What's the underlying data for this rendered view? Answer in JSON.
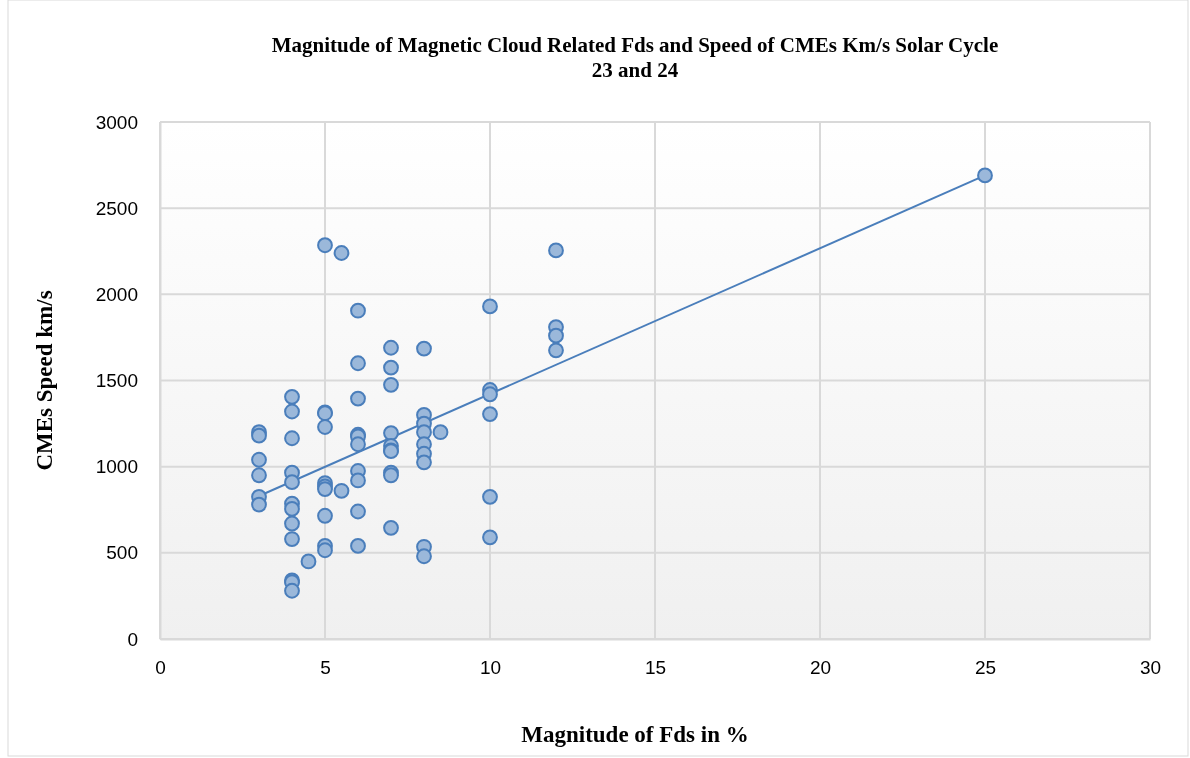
{
  "chart_data": {
    "type": "scatter",
    "title": "Magnitude of Magnetic Cloud Related Fds and Speed of CMEs Km/s Solar Cycle 23 and 24",
    "xlabel": "Magnitude of Fds in %",
    "ylabel": "CMEs Speed km/s",
    "xlim": [
      0,
      30
    ],
    "ylim": [
      0,
      3000
    ],
    "xticks": [
      0,
      5,
      10,
      15,
      20,
      25,
      30
    ],
    "yticks": [
      0,
      500,
      1000,
      1500,
      2000,
      2500,
      3000
    ],
    "grid": true,
    "series": [
      {
        "marker": "circle",
        "color": "#4a7ebb",
        "x": [
          3,
          3,
          3,
          3,
          3,
          3,
          4,
          4,
          4,
          4,
          4,
          4,
          4,
          4,
          4,
          4,
          4,
          4,
          4.5,
          5,
          5,
          5,
          5,
          5,
          5,
          5,
          5,
          5,
          5,
          5.5,
          5.5,
          6,
          6,
          6,
          6,
          6,
          6,
          6,
          6,
          6,
          6,
          7,
          7,
          7,
          7,
          7,
          7,
          7,
          7,
          7,
          7,
          8,
          8,
          8,
          8,
          8,
          8,
          8,
          8,
          8,
          8.5,
          10,
          10,
          10,
          10,
          10,
          10,
          12,
          12,
          12,
          12,
          25
        ],
        "values": [
          1200,
          1180,
          1040,
          950,
          825,
          780,
          1405,
          1320,
          1165,
          965,
          910,
          785,
          755,
          670,
          580,
          340,
          330,
          280,
          450,
          2285,
          1315,
          1310,
          1230,
          905,
          885,
          870,
          715,
          540,
          515,
          2240,
          860,
          1905,
          1600,
          1395,
          1185,
          1175,
          1130,
          975,
          920,
          740,
          540,
          1690,
          1575,
          1475,
          1195,
          1120,
          1095,
          1090,
          965,
          950,
          645,
          1685,
          1300,
          1250,
          1200,
          1130,
          1075,
          1025,
          535,
          480,
          1200,
          1930,
          1445,
          1420,
          1305,
          825,
          590,
          2255,
          1810,
          1760,
          1675,
          2690
        ]
      },
      {
        "type": "line",
        "color": "#4a7ebb",
        "x": [
          3,
          25
        ],
        "values": [
          830,
          2690
        ]
      }
    ]
  }
}
